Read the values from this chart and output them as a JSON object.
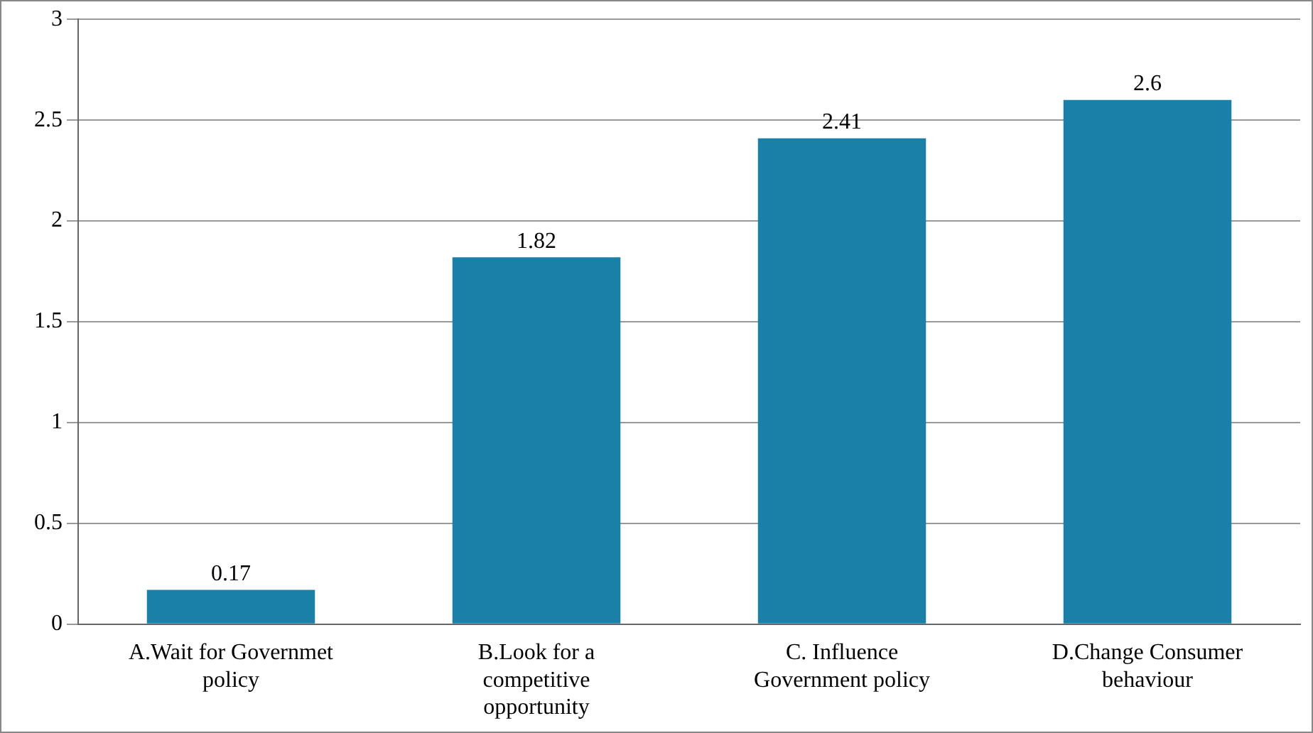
{
  "chart_data": {
    "type": "bar",
    "categories": [
      "A.Wait for Governmet policy",
      "B.Look for a competitive opportunity",
      "C. Influence Government policy",
      "D.Change Consumer behaviour"
    ],
    "values": [
      0.17,
      1.82,
      2.41,
      2.6
    ],
    "color": "#1a80a8",
    "ylim": [
      0,
      3
    ],
    "yticks": [
      0,
      0.5,
      1,
      1.5,
      2,
      2.5,
      3
    ],
    "grid": "y",
    "legend": false,
    "data_labels": true
  }
}
